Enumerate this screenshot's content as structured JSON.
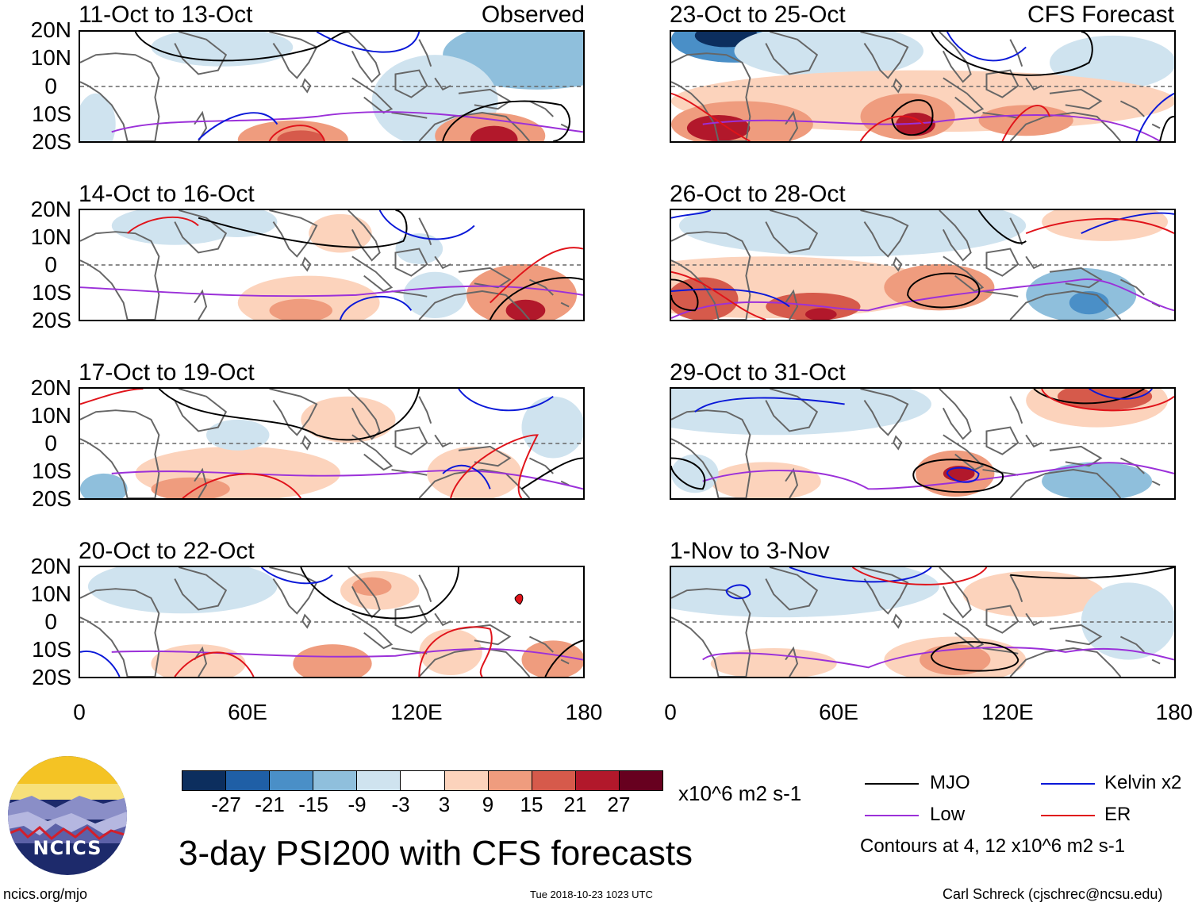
{
  "panels_left": [
    {
      "period": "11-Oct to 13-Oct",
      "label": "Observed"
    },
    {
      "period": "14-Oct to 16-Oct",
      "label": ""
    },
    {
      "period": "17-Oct to 19-Oct",
      "label": ""
    },
    {
      "period": "20-Oct to 22-Oct",
      "label": ""
    }
  ],
  "panels_right": [
    {
      "period": "23-Oct to 25-Oct",
      "label": "CFS Forecast"
    },
    {
      "period": "26-Oct to 28-Oct",
      "label": ""
    },
    {
      "period": "29-Oct to 31-Oct",
      "label": ""
    },
    {
      "period": "1-Nov to 3-Nov",
      "label": ""
    }
  ],
  "lat_labels": [
    "20N",
    "10N",
    "0",
    "10S",
    "20S"
  ],
  "lon_labels": [
    "0",
    "60E",
    "120E",
    "180"
  ],
  "colorbar": {
    "tick_labels": [
      "-27",
      "-21",
      "-15",
      "-9",
      "-3",
      "3",
      "9",
      "15",
      "21",
      "27"
    ],
    "colors": [
      "#0c2e5e",
      "#1f5fa6",
      "#4a8fc7",
      "#8fbfdc",
      "#cfe3ef",
      "#ffffff",
      "#fcd3bc",
      "#ef9c7e",
      "#d65a4b",
      "#b2182b",
      "#67001f"
    ],
    "units": "x10^6 m2 s-1"
  },
  "legend": {
    "items": [
      {
        "label": "MJO",
        "color": "#000000"
      },
      {
        "label": "Kelvin x2",
        "color": "#0a18d8"
      },
      {
        "label": "Low",
        "color": "#9b30d9"
      },
      {
        "label": "ER",
        "color": "#e0131a"
      }
    ],
    "contour_note": "Contours at 4, 12 x10^6 m2 s-1"
  },
  "logo_text": "NCICS",
  "main_title": "3-day PSI200 with CFS forecasts",
  "footer": {
    "url": "ncics.org/mjo",
    "timestamp": "Tue 2018-10-23 1023 UTC",
    "credit": "Carl Schreck (cjschrec@ncsu.edu)"
  }
}
